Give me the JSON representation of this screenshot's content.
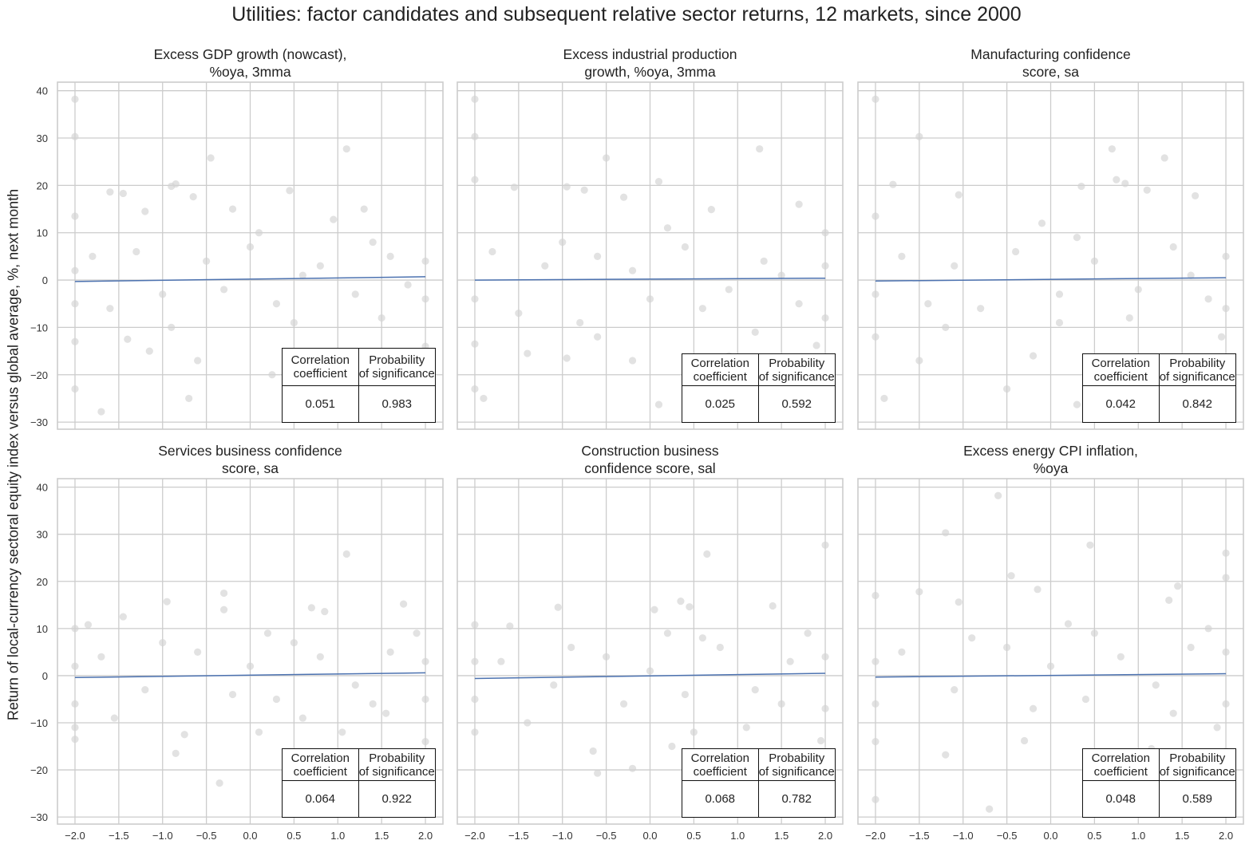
{
  "chart_data": {
    "title": "Utilities: factor candidates and subsequent relative sector returns, 12 markets, since 2000",
    "ylabel": "Return of local-currency sectoral equity index versus global average, %, next month",
    "xlabel": "",
    "type": "scatter",
    "grid": true,
    "xlim": [
      -2.2,
      2.2
    ],
    "ylim": [
      -31.5,
      41.8
    ],
    "x_ticks": [
      "−2.0",
      "−1.5",
      "−1.0",
      "−0.5",
      "0.0",
      "0.5",
      "1.0",
      "1.5",
      "2.0"
    ],
    "y_ticks": [
      "−30",
      "−20",
      "−10",
      "0",
      "10",
      "20",
      "30",
      "40"
    ],
    "colors": {
      "points": "#d3d3d3",
      "regression": "#4c72b0",
      "grid": "#cccccc"
    },
    "table_headers": [
      "Correlation\ncoefficient",
      "Probability\nof significance"
    ],
    "panels": [
      {
        "title": "Excess GDP growth (nowcast),\n%oya, 3mma",
        "regression": [
          [
            -2,
            -0.3
          ],
          [
            2,
            0.7
          ]
        ],
        "correlation": "0.051",
        "probability": "0.983",
        "points": [
          [
            -2,
            38.2
          ],
          [
            -2,
            30.3
          ],
          [
            1.1,
            27.7
          ],
          [
            -0.45,
            25.8
          ],
          [
            -0.85,
            20.3
          ],
          [
            -0.9,
            19.8
          ],
          [
            -0.65,
            17.6
          ],
          [
            0.45,
            18.9
          ],
          [
            -1.6,
            18.6
          ],
          [
            -1.45,
            18.3
          ],
          [
            -0.2,
            15
          ],
          [
            1.3,
            15
          ],
          [
            -2,
            13.5
          ],
          [
            0.95,
            12.8
          ],
          [
            -1.2,
            14.5
          ],
          [
            -2,
            -23
          ],
          [
            -1.7,
            -27.8
          ],
          [
            -0.7,
            -25
          ],
          [
            -0.6,
            -17
          ],
          [
            0.25,
            -20
          ],
          [
            -1.15,
            -15
          ],
          [
            1.75,
            -18.5
          ],
          [
            1.05,
            -16
          ],
          [
            2,
            -14
          ],
          [
            -2,
            -13
          ],
          [
            -1.4,
            -12.5
          ],
          [
            -0.9,
            -10
          ],
          [
            0.5,
            -9
          ],
          [
            1.5,
            -8
          ],
          [
            -1.8,
            5
          ],
          [
            -1.3,
            6
          ],
          [
            -0.5,
            4
          ],
          [
            0,
            7
          ],
          [
            0.3,
            -5
          ],
          [
            0.8,
            3
          ],
          [
            1.2,
            -3
          ],
          [
            1.6,
            5
          ],
          [
            2,
            4
          ],
          [
            2,
            -4
          ],
          [
            -2,
            2
          ],
          [
            -2,
            -5
          ],
          [
            -1,
            -3
          ],
          [
            -0.3,
            -2
          ],
          [
            0.6,
            1
          ],
          [
            1.8,
            -1
          ],
          [
            -1.6,
            -6
          ],
          [
            1.4,
            8
          ],
          [
            0.1,
            10
          ]
        ]
      },
      {
        "title": "Excess industrial production\ngrowth, %oya, 3mma",
        "regression": [
          [
            -2,
            0
          ],
          [
            2,
            0.4
          ]
        ],
        "correlation": "0.025",
        "probability": "0.592",
        "points": [
          [
            -2,
            38.2
          ],
          [
            -2,
            30.3
          ],
          [
            1.25,
            27.7
          ],
          [
            -0.5,
            25.8
          ],
          [
            -2,
            21.2
          ],
          [
            0.1,
            20.8
          ],
          [
            -0.95,
            19.7
          ],
          [
            -0.75,
            19
          ],
          [
            -1.55,
            19.6
          ],
          [
            -0.3,
            17.5
          ],
          [
            0.7,
            14.9
          ],
          [
            1.7,
            16
          ],
          [
            -2,
            -23
          ],
          [
            -1.9,
            -25
          ],
          [
            0.1,
            -26.3
          ],
          [
            -0.2,
            -17
          ],
          [
            -0.95,
            -16.5
          ],
          [
            -1.4,
            -15.5
          ],
          [
            0.9,
            -16
          ],
          [
            1.9,
            -13.8
          ],
          [
            -2,
            -13.5
          ],
          [
            -0.6,
            -12
          ],
          [
            1.2,
            -11
          ],
          [
            2,
            10
          ],
          [
            2,
            -8
          ],
          [
            -1.8,
            6
          ],
          [
            -1.2,
            3
          ],
          [
            -0.6,
            5
          ],
          [
            0,
            -4
          ],
          [
            0.4,
            7
          ],
          [
            0.9,
            -2
          ],
          [
            1.3,
            4
          ],
          [
            1.7,
            -5
          ],
          [
            2,
            3
          ],
          [
            -2,
            -4
          ],
          [
            -1.5,
            -7
          ],
          [
            -0.2,
            2
          ],
          [
            0.6,
            -6
          ],
          [
            1.5,
            1
          ],
          [
            -1,
            8
          ],
          [
            0.2,
            11
          ],
          [
            -0.8,
            -9
          ]
        ]
      },
      {
        "title": "Manufacturing confidence\nscore, sa",
        "regression": [
          [
            -2,
            -0.2
          ],
          [
            2,
            0.5
          ]
        ],
        "correlation": "0.042",
        "probability": "0.842",
        "points": [
          [
            -2,
            38.2
          ],
          [
            -1.5,
            30.3
          ],
          [
            0.7,
            27.7
          ],
          [
            1.3,
            25.8
          ],
          [
            -1.8,
            20.2
          ],
          [
            0.75,
            21.2
          ],
          [
            0.85,
            20.4
          ],
          [
            0.35,
            19.8
          ],
          [
            1.1,
            19
          ],
          [
            -1.05,
            18
          ],
          [
            1.65,
            17.8
          ],
          [
            -2,
            13.5
          ],
          [
            -1.9,
            -25
          ],
          [
            -0.5,
            -23
          ],
          [
            0.3,
            -26.3
          ],
          [
            0.7,
            -17
          ],
          [
            -1.5,
            -17
          ],
          [
            1.3,
            -17.8
          ],
          [
            -0.2,
            -16
          ],
          [
            1.95,
            -12
          ],
          [
            -2,
            -12
          ],
          [
            -1.2,
            -10
          ],
          [
            0.1,
            -9
          ],
          [
            -1.7,
            5
          ],
          [
            -1.1,
            3
          ],
          [
            -0.4,
            6
          ],
          [
            0.1,
            -3
          ],
          [
            0.5,
            4
          ],
          [
            1,
            -2
          ],
          [
            1.4,
            7
          ],
          [
            1.8,
            -4
          ],
          [
            2,
            5
          ],
          [
            2,
            -6
          ],
          [
            -2,
            -3
          ],
          [
            -0.8,
            -6
          ],
          [
            0.3,
            9
          ],
          [
            1.6,
            1
          ],
          [
            -0.1,
            12
          ],
          [
            -1.4,
            -5
          ],
          [
            0.9,
            -8
          ]
        ]
      },
      {
        "title": "Services business confidence\nscore, sa",
        "regression": [
          [
            -2,
            -0.4
          ],
          [
            2,
            0.6
          ]
        ],
        "correlation": "0.064",
        "probability": "0.922",
        "points": [
          [
            1.1,
            25.8
          ],
          [
            -0.3,
            17.5
          ],
          [
            -0.95,
            15.7
          ],
          [
            1.75,
            15.2
          ],
          [
            -0.3,
            14
          ],
          [
            0.7,
            14.4
          ],
          [
            0.85,
            13.6
          ],
          [
            -1.45,
            12.5
          ],
          [
            -1.85,
            10.8
          ],
          [
            -2,
            10
          ],
          [
            -0.85,
            -16.5
          ],
          [
            -0.35,
            -22.8
          ],
          [
            -0.75,
            -12.5
          ],
          [
            0.1,
            -12
          ],
          [
            1.05,
            -12
          ],
          [
            0.6,
            -9
          ],
          [
            -1.55,
            -9
          ],
          [
            2,
            -14
          ],
          [
            -2,
            -13.5
          ],
          [
            -2,
            -11
          ],
          [
            1.55,
            -8
          ],
          [
            -1.7,
            4
          ],
          [
            -1.2,
            -3
          ],
          [
            -0.6,
            5
          ],
          [
            0,
            2
          ],
          [
            0.3,
            -5
          ],
          [
            0.8,
            4
          ],
          [
            1.2,
            -2
          ],
          [
            1.6,
            5
          ],
          [
            2,
            3
          ],
          [
            2,
            -5
          ],
          [
            -2,
            2
          ],
          [
            -2,
            -6
          ],
          [
            -0.2,
            -4
          ],
          [
            0.5,
            7
          ],
          [
            1.4,
            -6
          ],
          [
            -1,
            7
          ],
          [
            0.2,
            9
          ],
          [
            1.9,
            9
          ]
        ]
      },
      {
        "title": "Construction business\nconfidence score, sal",
        "regression": [
          [
            -2,
            -0.6
          ],
          [
            2,
            0.5
          ]
        ],
        "correlation": "0.068",
        "probability": "0.782",
        "points": [
          [
            2,
            27.7
          ],
          [
            0.65,
            25.8
          ],
          [
            0.35,
            15.8
          ],
          [
            0.45,
            14.6
          ],
          [
            -1.05,
            14.5
          ],
          [
            -2,
            10.8
          ],
          [
            -1.6,
            10.5
          ],
          [
            0.05,
            14
          ],
          [
            1.4,
            14.8
          ],
          [
            -0.65,
            -16
          ],
          [
            -0.6,
            -20.7
          ],
          [
            -0.2,
            -19.7
          ],
          [
            0.25,
            -15
          ],
          [
            1.95,
            -13.8
          ],
          [
            -2,
            -12
          ],
          [
            -1.4,
            -10
          ],
          [
            0.5,
            -12
          ],
          [
            1.1,
            -11
          ],
          [
            -1.7,
            3
          ],
          [
            -1.1,
            -2
          ],
          [
            -0.5,
            4
          ],
          [
            0,
            1
          ],
          [
            0.4,
            -4
          ],
          [
            0.8,
            6
          ],
          [
            1.2,
            -3
          ],
          [
            1.6,
            3
          ],
          [
            2,
            4
          ],
          [
            2,
            -7
          ],
          [
            -2,
            3
          ],
          [
            -2,
            -5
          ],
          [
            -0.3,
            -6
          ],
          [
            0.6,
            8
          ],
          [
            1.5,
            -6
          ],
          [
            -0.9,
            6
          ],
          [
            0.2,
            9
          ],
          [
            1.8,
            9
          ]
        ]
      },
      {
        "title": "Excess energy CPI inflation,\n%oya",
        "regression": [
          [
            -2,
            -0.3
          ],
          [
            2,
            0.4
          ]
        ],
        "correlation": "0.048",
        "probability": "0.589",
        "points": [
          [
            -0.6,
            38.2
          ],
          [
            -1.2,
            30.3
          ],
          [
            0.45,
            27.7
          ],
          [
            2,
            26
          ],
          [
            -0.45,
            21.2
          ],
          [
            2,
            20.8
          ],
          [
            -1.5,
            17.8
          ],
          [
            -0.15,
            18.3
          ],
          [
            1.45,
            19
          ],
          [
            1.35,
            16
          ],
          [
            -1.05,
            15.6
          ],
          [
            -2,
            17
          ],
          [
            -2,
            -26.3
          ],
          [
            -0.7,
            -28.3
          ],
          [
            0.55,
            -16.5
          ],
          [
            1.15,
            -15.5
          ],
          [
            -1.2,
            -16.8
          ],
          [
            2,
            -16
          ],
          [
            -2,
            -14
          ],
          [
            -0.3,
            -13.8
          ],
          [
            1.9,
            -11
          ],
          [
            -1.7,
            5
          ],
          [
            -1.1,
            -3
          ],
          [
            -0.5,
            6
          ],
          [
            0,
            2
          ],
          [
            0.4,
            -5
          ],
          [
            0.8,
            4
          ],
          [
            1.2,
            -2
          ],
          [
            1.6,
            6
          ],
          [
            2,
            5
          ],
          [
            2,
            -6
          ],
          [
            -2,
            3
          ],
          [
            -2,
            -6
          ],
          [
            -0.2,
            -7
          ],
          [
            0.5,
            9
          ],
          [
            1.4,
            -8
          ],
          [
            -0.9,
            8
          ],
          [
            0.2,
            11
          ],
          [
            1.8,
            10
          ]
        ]
      }
    ]
  }
}
